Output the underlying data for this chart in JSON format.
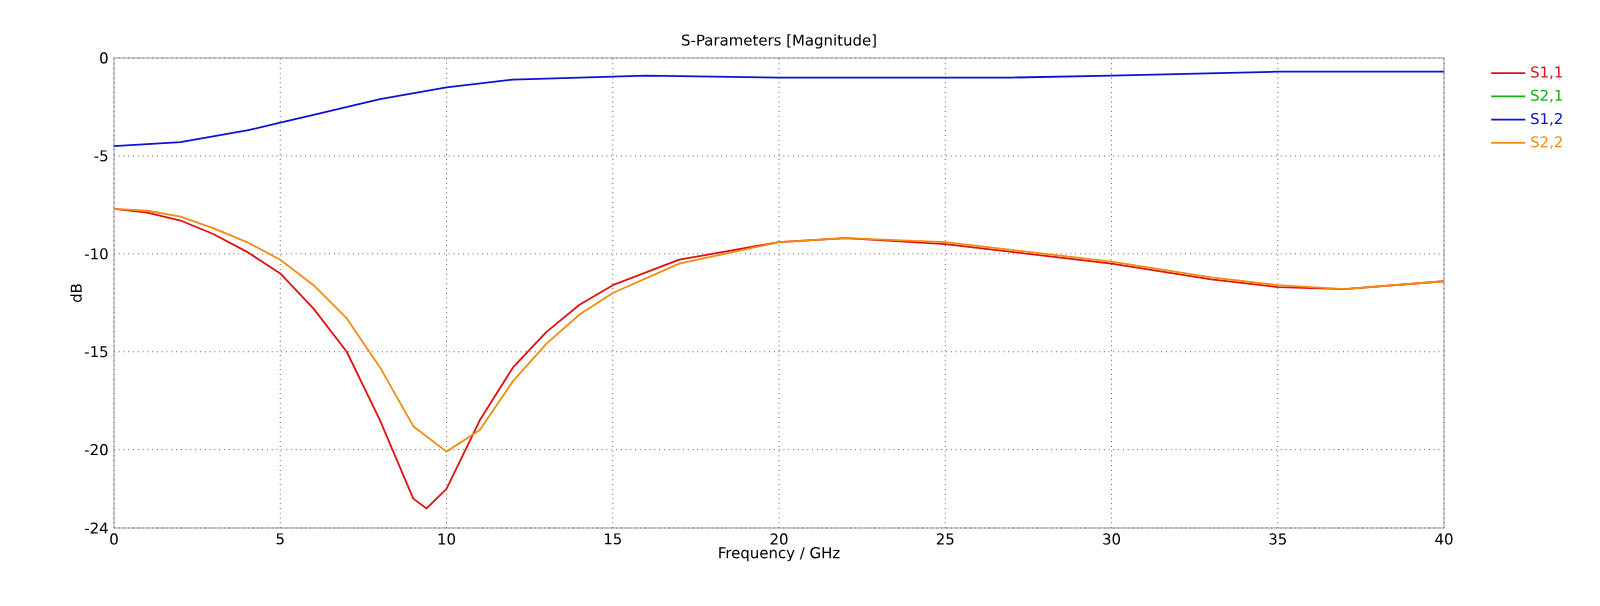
{
  "chart_data": {
    "type": "line",
    "title": "S-Parameters [Magnitude]",
    "xlabel": "Frequency / GHz",
    "ylabel": "dB",
    "xlim": [
      0,
      40
    ],
    "xticks": [
      0,
      5,
      10,
      15,
      20,
      25,
      30,
      35,
      40
    ],
    "ylim": [
      -24,
      0
    ],
    "yticks": [
      0,
      -5,
      -10,
      -15,
      -20,
      -24
    ],
    "grid": true,
    "legend": "top right",
    "line_style": "solid",
    "series": [
      {
        "name": "S1,1",
        "color": "#e01010",
        "x": [
          0,
          1,
          2,
          3,
          4,
          5,
          6,
          7,
          8,
          9,
          9.4,
          10,
          11,
          12,
          13,
          14,
          15,
          17,
          20,
          22,
          25,
          27.5,
          30,
          33,
          35,
          37,
          40
        ],
        "values": [
          -7.7,
          -7.9,
          -8.3,
          -9,
          -9.9,
          -11,
          -12.8,
          -15,
          -18.5,
          -22.5,
          -23,
          -22,
          -18.5,
          -15.8,
          -14,
          -12.6,
          -11.6,
          -10.3,
          -9.4,
          -9.2,
          -9.5,
          -10,
          -10.5,
          -11.3,
          -11.7,
          -11.8,
          -11.4
        ]
      },
      {
        "name": "S2,1",
        "color": "#10b010"
      },
      {
        "name": "S1,2",
        "color": "#1010d0",
        "x": [
          0,
          2,
          4,
          5,
          6,
          8,
          10,
          12,
          14,
          16,
          20,
          27,
          30,
          35,
          40
        ],
        "values": [
          -4.5,
          -4.3,
          -3.7,
          -3.3,
          -2.9,
          -2.1,
          -1.5,
          -1.1,
          -1,
          -0.9,
          -1,
          -1,
          -0.9,
          -0.7,
          -0.7
        ]
      },
      {
        "name": "S2,2",
        "color": "#f08c10",
        "x": [
          0,
          1,
          2,
          3,
          4,
          5,
          6,
          7,
          8,
          9,
          10,
          11,
          12,
          13,
          14,
          15,
          17,
          20,
          22,
          25,
          27.5,
          30,
          33,
          35,
          37,
          40
        ],
        "values": [
          -7.7,
          -7.8,
          -8.1,
          -8.7,
          -9.4,
          -10.3,
          -11.6,
          -13.3,
          -15.8,
          -18.8,
          -20.1,
          -19,
          -16.5,
          -14.6,
          -13.1,
          -12,
          -10.5,
          -9.4,
          -9.2,
          -9.4,
          -9.9,
          -10.4,
          -11.2,
          -11.6,
          -11.8,
          -11.4
        ]
      }
    ]
  }
}
